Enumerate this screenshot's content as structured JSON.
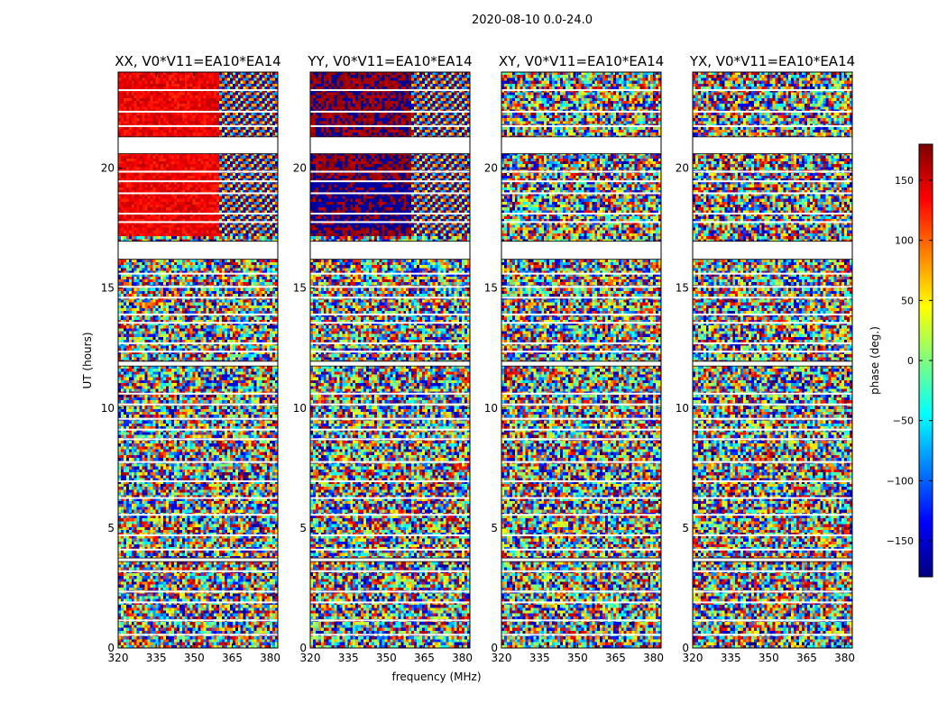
{
  "figure": {
    "title": "2020-08-10 0.0-24.0"
  },
  "chart_data": {
    "type": "heatmap",
    "title": "2020-08-10 0.0-24.0",
    "xlabel": "frequency (MHz)",
    "ylabel": "UT (hours)",
    "xlim": [
      320,
      383
    ],
    "ylim": [
      0,
      24
    ],
    "xticks": [
      320,
      335,
      350,
      365,
      380
    ],
    "yticks": [
      0,
      5,
      10,
      15,
      20
    ],
    "panels": [
      {
        "title": "XX, V0*V11=EA10*EA14",
        "coherent_phase_deg": 140,
        "coherent_freq_max": 360,
        "coherent_hours": [
          17.2,
          24
        ]
      },
      {
        "title": "YY, V0*V11=EA10*EA14",
        "coherent_phase_deg": 175,
        "coherent_freq_max": 360,
        "coherent_hours": [
          17.2,
          24
        ]
      },
      {
        "title": "XY, V0*V11=EA10*EA14",
        "coherent_phase_deg": null,
        "coherent_freq_max": null,
        "coherent_hours": null
      },
      {
        "title": "YX, V0*V11=EA10*EA14",
        "coherent_phase_deg": null,
        "coherent_freq_max": null,
        "coherent_hours": null
      }
    ],
    "gaps_hours": [
      [
        21.3,
        20.6
      ],
      [
        16.95,
        16.2
      ],
      [
        11.95,
        11.75
      ],
      [
        3.75,
        3.6
      ]
    ],
    "flagged_rows_hours": [
      23.25,
      22.35,
      21.75,
      19.85,
      19.45,
      18.95,
      18.1,
      17.75,
      15.6,
      15.05,
      14.6,
      13.9,
      13.55,
      12.7,
      12.35,
      10.6,
      10.15,
      9.55,
      9.1,
      8.7,
      7.75,
      6.95,
      6.25,
      5.55,
      4.7,
      4.1,
      3.2,
      2.35,
      1.9,
      1.15,
      0.55
    ],
    "colorbar": {
      "label": "phase (deg.)",
      "range": [
        -180,
        180
      ],
      "ticks": [
        150,
        100,
        50,
        0,
        -50,
        -100,
        -150
      ],
      "tick_labels": [
        "150",
        "100",
        "50",
        "0",
        "−50",
        "−100",
        "−150"
      ],
      "colormap": "jet"
    }
  },
  "colors": {
    "axis": "#000000",
    "gap": "#ffffff"
  }
}
